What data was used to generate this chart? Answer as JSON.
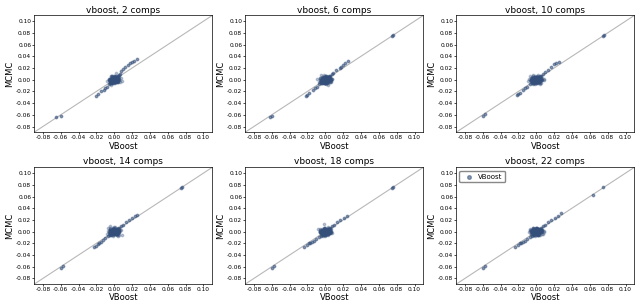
{
  "titles": [
    "vboost, 2 comps",
    "vboost, 6 comps",
    "vboost, 10 comps",
    "vboost, 14 comps",
    "vboost, 18 comps",
    "vboost, 22 comps"
  ],
  "xlabel": "VBoost",
  "ylabel": "MCMC",
  "xlim": [
    -0.09,
    0.11
  ],
  "ylim": [
    -0.09,
    0.11
  ],
  "xticks": [
    -0.08,
    -0.06,
    -0.04,
    -0.02,
    0.0,
    0.02,
    0.04,
    0.06,
    0.08,
    0.1
  ],
  "yticks": [
    -0.08,
    -0.06,
    -0.04,
    -0.02,
    0.0,
    0.02,
    0.04,
    0.06,
    0.08,
    0.1
  ],
  "marker_color": "#344f7a",
  "marker_size": 3,
  "marker_alpha": 0.55,
  "diag_color": "#b8b8b8",
  "legend_label": "VBoost",
  "background_color": "#ffffff",
  "scatter_data": {
    "2": {
      "x": [
        0.0,
        0.0,
        0.0,
        0.0,
        0.0,
        0.0,
        0.0,
        0.0,
        0.0,
        0.0,
        0.001,
        -0.001,
        0.001,
        -0.001,
        0.001,
        -0.001,
        0.002,
        -0.002,
        0.002,
        -0.002,
        0.003,
        -0.003,
        0.004,
        -0.004,
        0.005,
        -0.005,
        0.006,
        -0.006,
        0.008,
        -0.008,
        0.01,
        -0.01,
        0.012,
        -0.012,
        0.015,
        0.018,
        0.02,
        0.022,
        0.025,
        -0.015,
        -0.018,
        -0.02,
        -0.06,
        -0.065,
        0.0,
        0.0,
        0.0,
        0.0,
        0.0
      ],
      "y": [
        0.0,
        0.001,
        -0.001,
        0.002,
        -0.002,
        0.003,
        -0.003,
        0.0,
        0.001,
        -0.001,
        0.001,
        -0.001,
        0.002,
        -0.002,
        0.003,
        -0.003,
        0.004,
        -0.004,
        0.003,
        -0.003,
        0.005,
        -0.005,
        0.006,
        -0.006,
        0.008,
        -0.006,
        0.01,
        -0.008,
        0.015,
        -0.012,
        0.018,
        -0.015,
        0.022,
        -0.018,
        0.025,
        0.028,
        0.03,
        0.032,
        0.035,
        -0.02,
        -0.025,
        -0.028,
        -0.062,
        -0.063,
        0.001,
        -0.001,
        0.002,
        -0.002,
        0.0
      ]
    },
    "6": {
      "x": [
        0.0,
        0.0,
        0.0,
        0.0,
        0.0,
        0.0,
        0.0,
        0.0,
        0.0,
        0.0,
        0.001,
        -0.001,
        0.001,
        -0.001,
        0.002,
        -0.002,
        0.002,
        -0.002,
        0.003,
        -0.003,
        0.004,
        -0.004,
        0.005,
        -0.005,
        0.007,
        -0.007,
        0.009,
        -0.009,
        0.012,
        -0.012,
        0.016,
        0.018,
        0.02,
        0.022,
        0.025,
        -0.014,
        -0.018,
        -0.02,
        -0.022,
        -0.06,
        -0.062,
        0.075,
        0.076,
        0.0,
        0.0,
        0.0
      ],
      "y": [
        0.0,
        0.001,
        -0.001,
        0.002,
        -0.002,
        0.003,
        -0.003,
        0.0,
        0.001,
        -0.001,
        0.001,
        -0.001,
        0.002,
        -0.002,
        0.003,
        -0.003,
        0.004,
        -0.003,
        0.005,
        -0.005,
        0.006,
        -0.005,
        0.007,
        -0.006,
        0.009,
        -0.008,
        0.012,
        -0.012,
        0.016,
        -0.014,
        0.02,
        0.022,
        0.025,
        0.028,
        0.032,
        -0.018,
        -0.022,
        -0.026,
        -0.028,
        -0.062,
        -0.063,
        0.075,
        0.077,
        0.001,
        -0.001,
        0.002
      ]
    },
    "10": {
      "x": [
        0.0,
        0.0,
        0.0,
        0.0,
        0.0,
        0.0,
        0.0,
        0.0,
        0.0,
        0.0,
        0.001,
        -0.001,
        0.001,
        -0.001,
        0.002,
        -0.002,
        0.002,
        -0.002,
        0.003,
        -0.003,
        0.004,
        -0.004,
        0.005,
        -0.005,
        0.007,
        -0.007,
        0.01,
        -0.01,
        0.013,
        -0.013,
        0.017,
        0.02,
        0.022,
        0.025,
        -0.015,
        -0.018,
        -0.02,
        -0.022,
        -0.058,
        -0.06,
        0.075,
        0.076,
        0.0,
        0.0
      ],
      "y": [
        0.0,
        0.001,
        -0.001,
        0.002,
        -0.002,
        0.003,
        -0.003,
        0.0,
        0.001,
        -0.001,
        0.001,
        -0.001,
        0.002,
        -0.002,
        0.003,
        -0.003,
        0.004,
        -0.003,
        0.005,
        -0.005,
        0.006,
        -0.005,
        0.007,
        -0.006,
        0.009,
        -0.008,
        0.013,
        -0.012,
        0.017,
        -0.015,
        0.022,
        0.026,
        0.028,
        0.03,
        -0.018,
        -0.022,
        -0.025,
        -0.027,
        -0.058,
        -0.062,
        0.075,
        0.077,
        0.001,
        -0.001
      ]
    },
    "14": {
      "x": [
        0.0,
        0.0,
        0.0,
        0.0,
        0.0,
        0.0,
        0.0,
        0.0,
        0.0,
        0.0,
        0.001,
        -0.001,
        0.001,
        -0.001,
        0.002,
        -0.002,
        0.003,
        -0.003,
        0.004,
        -0.004,
        0.005,
        -0.005,
        0.007,
        -0.007,
        0.01,
        -0.01,
        0.013,
        -0.013,
        0.017,
        -0.017,
        0.02,
        0.023,
        0.025,
        -0.015,
        -0.018,
        -0.02,
        -0.023,
        -0.058,
        -0.06,
        0.075,
        0.076,
        0.0,
        0.0
      ],
      "y": [
        0.0,
        0.001,
        -0.001,
        0.002,
        -0.002,
        0.003,
        -0.003,
        0.0,
        0.001,
        -0.001,
        0.001,
        -0.001,
        0.002,
        -0.002,
        0.003,
        -0.003,
        0.004,
        -0.004,
        0.005,
        -0.005,
        0.007,
        -0.006,
        0.009,
        -0.008,
        0.012,
        -0.011,
        0.016,
        -0.015,
        0.02,
        -0.019,
        0.023,
        0.026,
        0.028,
        -0.017,
        -0.021,
        -0.024,
        -0.026,
        -0.059,
        -0.062,
        0.075,
        0.077,
        0.001,
        -0.001
      ]
    },
    "18": {
      "x": [
        0.0,
        0.0,
        0.0,
        0.0,
        0.0,
        0.0,
        0.0,
        0.0,
        0.0,
        0.0,
        0.001,
        -0.001,
        0.001,
        -0.001,
        0.002,
        -0.002,
        0.003,
        -0.003,
        0.004,
        -0.004,
        0.005,
        -0.005,
        0.007,
        -0.007,
        0.01,
        -0.01,
        0.013,
        -0.013,
        0.017,
        -0.017,
        0.021,
        0.024,
        -0.015,
        -0.018,
        -0.021,
        -0.024,
        -0.058,
        -0.06,
        0.075,
        0.076,
        0.0,
        0.0
      ],
      "y": [
        0.0,
        0.001,
        -0.001,
        0.002,
        -0.002,
        0.003,
        -0.003,
        0.0,
        0.001,
        -0.001,
        0.001,
        -0.001,
        0.002,
        -0.002,
        0.003,
        -0.003,
        0.004,
        -0.004,
        0.005,
        -0.005,
        0.007,
        -0.007,
        0.009,
        -0.009,
        0.012,
        -0.012,
        0.016,
        -0.016,
        0.02,
        -0.02,
        0.024,
        0.027,
        -0.017,
        -0.02,
        -0.023,
        -0.026,
        -0.059,
        -0.062,
        0.075,
        0.077,
        0.001,
        -0.001
      ]
    },
    "22": {
      "x": [
        0.0,
        0.0,
        0.0,
        0.0,
        0.0,
        0.0,
        0.0,
        0.0,
        0.0,
        0.0,
        0.001,
        -0.001,
        0.001,
        -0.001,
        0.002,
        -0.002,
        0.003,
        -0.003,
        0.004,
        -0.004,
        0.005,
        -0.005,
        0.007,
        -0.007,
        0.01,
        -0.01,
        0.013,
        -0.013,
        0.017,
        -0.017,
        0.021,
        0.024,
        0.028,
        -0.015,
        -0.018,
        -0.021,
        -0.024,
        -0.057,
        -0.06,
        0.063,
        0.075,
        0.0,
        0.0
      ],
      "y": [
        0.0,
        0.001,
        -0.001,
        0.002,
        -0.002,
        0.003,
        -0.003,
        0.0,
        0.001,
        -0.001,
        0.001,
        -0.001,
        0.002,
        -0.002,
        0.003,
        -0.003,
        0.004,
        -0.004,
        0.005,
        -0.005,
        0.007,
        -0.007,
        0.009,
        -0.009,
        0.012,
        -0.012,
        0.016,
        -0.016,
        0.02,
        -0.02,
        0.024,
        0.027,
        0.031,
        -0.017,
        -0.02,
        -0.023,
        -0.026,
        -0.058,
        -0.062,
        0.063,
        0.076,
        0.001,
        -0.001
      ]
    }
  }
}
